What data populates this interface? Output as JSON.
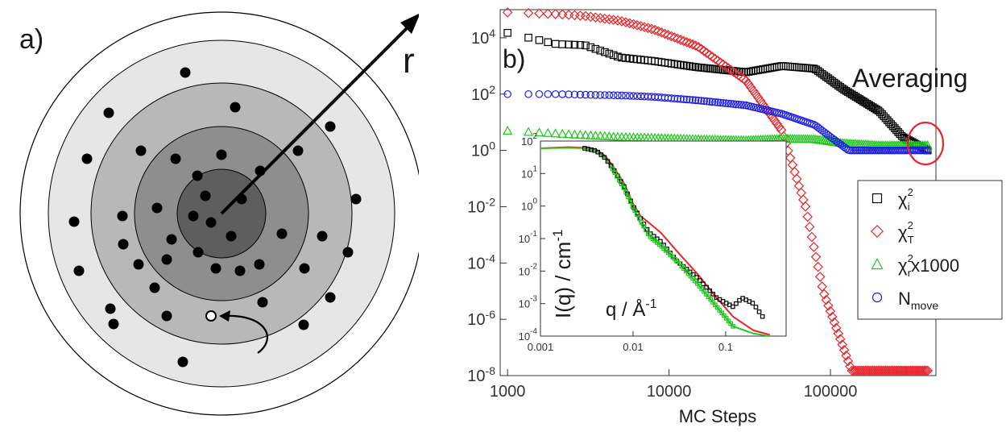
{
  "panel_a": {
    "label": "a)",
    "radius_label": "r"
  },
  "panel_b": {
    "label": "b)",
    "annotation": "Averaging"
  },
  "colors": {
    "chi_i": "#000000",
    "chi_T": "#e8262c",
    "chi_r": "#22c81e",
    "N_move": "#1f1fe0",
    "ring_outer": "#ffffff",
    "ring_1": "#e6e6e6",
    "ring_2": "#b8b8b8",
    "ring_3": "#8e8e8e",
    "ring_4": "#5e5e5e"
  },
  "chart_data": [
    {
      "type": "scatter",
      "xlabel": "MC Steps",
      "ylabel": "",
      "xscale": "log",
      "yscale": "log",
      "xlim": [
        900,
        450000
      ],
      "ylim": [
        1e-08,
        100000.0
      ],
      "x_ticks": [
        1000,
        10000,
        100000
      ],
      "x_tick_labels": [
        "1000",
        "10000",
        "100000"
      ],
      "y_ticks": [
        1e-08,
        1e-06,
        0.0001,
        0.01,
        1,
        100,
        10000
      ],
      "y_tick_labels": [
        {
          "base": "10",
          "exp": "-8"
        },
        {
          "base": "10",
          "exp": "-6"
        },
        {
          "base": "10",
          "exp": "-4"
        },
        {
          "base": "10",
          "exp": "-2"
        },
        {
          "base": "10",
          "exp": "0"
        },
        {
          "base": "10",
          "exp": "2"
        },
        {
          "base": "10",
          "exp": "4"
        }
      ],
      "legend_position": "right",
      "series": [
        {
          "name": "χ_i²",
          "legend": {
            "sym": "χ",
            "sup": "2",
            "sub": "i",
            "rest": ""
          },
          "marker": "square",
          "color": "#000000",
          "x": [
            1000,
            2000,
            3000,
            5000,
            8000,
            15000,
            30000,
            50000,
            80000,
            120000,
            200000,
            280000,
            400000
          ],
          "y": [
            15000,
            6000,
            5500,
            2000,
            1500,
            900,
            600,
            1000,
            800,
            150,
            25,
            3,
            1
          ]
        },
        {
          "name": "χ_T²",
          "legend": {
            "sym": "χ",
            "sup": "2",
            "sub": "T",
            "rest": ""
          },
          "marker": "diamond",
          "color": "#e8262c",
          "x": [
            1000,
            2000,
            3000,
            5000,
            8000,
            15000,
            30000,
            50000,
            70000,
            90000,
            120000,
            135000,
            200000,
            400000
          ],
          "y": [
            80000,
            70000,
            60000,
            40000,
            20000,
            5000,
            300,
            5,
            0.01,
            1e-05,
            1e-07,
            1.5e-08,
            1.5e-08,
            1.5e-08
          ]
        },
        {
          "name": "χ_r² x1000",
          "legend": {
            "sym": "χ",
            "sup": "2",
            "sub": "r",
            "rest": "x1000"
          },
          "marker": "triangle",
          "color": "#22c81e",
          "x": [
            1000,
            2000,
            3000,
            5000,
            8000,
            15000,
            30000,
            50000,
            80000,
            120000,
            200000,
            400000
          ],
          "y": [
            5,
            4,
            3.5,
            3,
            2.8,
            2.5,
            2.3,
            2.6,
            2.5,
            1.8,
            1.5,
            1.5
          ]
        },
        {
          "name": "N_move",
          "legend": {
            "sym": "N",
            "sup": "",
            "sub": "move",
            "rest": ""
          },
          "marker": "circle",
          "color": "#1f1fe0",
          "x": [
            1000,
            2000,
            3000,
            5000,
            8000,
            15000,
            30000,
            50000,
            80000,
            110000,
            130000,
            200000,
            400000
          ],
          "y": [
            100,
            100,
            95,
            90,
            80,
            60,
            40,
            20,
            8,
            2,
            1,
            1,
            1
          ]
        }
      ]
    },
    {
      "type": "line",
      "inset": true,
      "xlabel": "q / Å⁻¹",
      "xlabel_parts": {
        "main": "q / Å",
        "sup": "-1"
      },
      "ylabel": "I(q) / cm⁻¹",
      "ylabel_parts": {
        "main": "I(q) / cm",
        "sup": "-1"
      },
      "xscale": "log",
      "yscale": "log",
      "xlim": [
        0.001,
        0.45
      ],
      "ylim": [
        0.0001,
        100
      ],
      "x_ticks": [
        0.001,
        0.01,
        0.1
      ],
      "x_tick_labels": [
        "0.001",
        "0.01",
        "0.1"
      ],
      "y_ticks": [
        0.0001,
        0.001,
        0.01,
        0.1,
        1,
        10,
        100
      ],
      "y_tick_labels": [
        {
          "base": "10",
          "exp": "-4"
        },
        {
          "base": "10",
          "exp": "-3"
        },
        {
          "base": "10",
          "exp": "-2"
        },
        {
          "base": "10",
          "exp": "-1"
        },
        {
          "base": "10",
          "exp": "0"
        },
        {
          "base": "10",
          "exp": "1"
        },
        {
          "base": "10",
          "exp": "2"
        }
      ],
      "series": [
        {
          "style": "line",
          "color": "#e8262c",
          "x": [
            0.001,
            0.002,
            0.003,
            0.004,
            0.005,
            0.006,
            0.008,
            0.01,
            0.012,
            0.015,
            0.02,
            0.03,
            0.05,
            0.08,
            0.12,
            0.2,
            0.3
          ],
          "y": [
            60,
            65,
            62,
            55,
            35,
            18,
            5,
            1.2,
            0.5,
            0.3,
            0.15,
            0.04,
            0.008,
            0.0015,
            0.0004,
            0.00015,
            0.00011
          ]
        },
        {
          "style": "line",
          "color": "#22c81e",
          "x": [
            0.001,
            0.002,
            0.003,
            0.004,
            0.005,
            0.006,
            0.008,
            0.01,
            0.012,
            0.015,
            0.02,
            0.03,
            0.05,
            0.08,
            0.12,
            0.2,
            0.3
          ],
          "y": [
            60,
            62,
            60,
            50,
            30,
            14,
            3.5,
            0.9,
            0.3,
            0.12,
            0.06,
            0.02,
            0.004,
            0.0008,
            0.0002,
            0.00012,
            0.0001
          ]
        },
        {
          "style": "markers",
          "marker": "square",
          "color": "#000000",
          "x": [
            0.003,
            0.004,
            0.005,
            0.006,
            0.008,
            0.01,
            0.015,
            0.02,
            0.03,
            0.05,
            0.08,
            0.12,
            0.15,
            0.2,
            0.25
          ],
          "y": [
            60,
            50,
            30,
            15,
            4,
            1,
            0.15,
            0.08,
            0.02,
            0.006,
            0.0015,
            0.0008,
            0.0015,
            0.001,
            0.0004
          ]
        },
        {
          "style": "markers",
          "marker": "square",
          "color": "#22c81e",
          "x": [
            0.006,
            0.008,
            0.01,
            0.015,
            0.02,
            0.03,
            0.05,
            0.08,
            0.12
          ],
          "y": [
            14,
            3.5,
            0.9,
            0.12,
            0.06,
            0.02,
            0.004,
            0.0008,
            0.0002
          ]
        }
      ]
    }
  ]
}
